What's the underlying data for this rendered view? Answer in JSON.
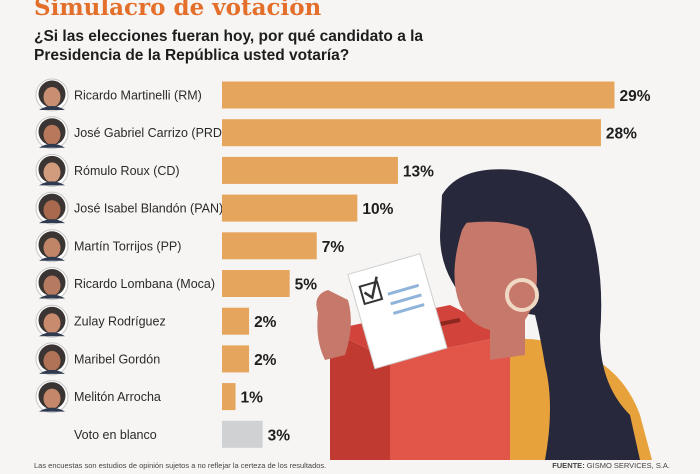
{
  "header": {
    "title": "Simulacro de votación",
    "subtitle": "¿Si las elecciones fueran hoy, por qué candidato a la Presidencia de la República usted votaría?"
  },
  "chart_data": {
    "type": "bar",
    "orientation": "horizontal",
    "categories": [
      "Ricardo Martinelli (RM)",
      "José Gabriel Carrizo (PRD)",
      "Rómulo Roux (CD)",
      "José Isabel Blandón (PAN)",
      "Martín Torrijos (PP)",
      "Ricardo Lombana (Moca)",
      "Zulay Rodríguez",
      "Maribel Gordón",
      "Melitón Arrocha",
      "Voto en blanco"
    ],
    "values": [
      29,
      28,
      13,
      10,
      7,
      5,
      2,
      2,
      1,
      3
    ],
    "value_labels": [
      "29%",
      "28%",
      "13%",
      "10%",
      "7%",
      "5%",
      "2%",
      "2%",
      "1%",
      "3%"
    ],
    "xlim": [
      0,
      30
    ],
    "grid": false,
    "colors": {
      "bar": "#e5a55d",
      "blank_vote_bar": "#cfd1d3"
    }
  },
  "footer": {
    "note": "Las encuestas son estudios de opinión sujetos a no reflejar la certeza de los resultados.",
    "source_label": "FUENTE:",
    "source_value": "GISMO SERVICES, S.A."
  }
}
